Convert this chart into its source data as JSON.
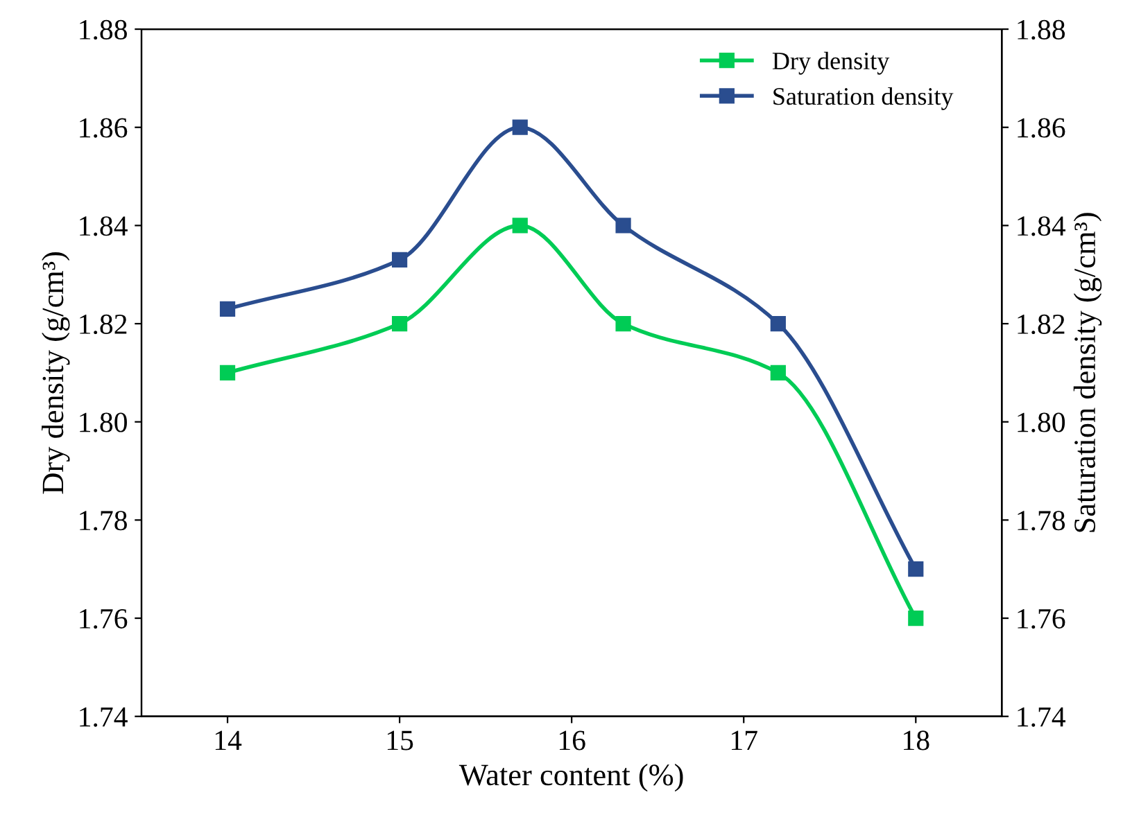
{
  "chart_data": {
    "type": "line",
    "xlabel": "Water content (%)",
    "ylabel": "Dry density (g/cm³)",
    "y2label": "Saturation density (g/cm³)",
    "x": [
      14,
      15,
      15.7,
      16.3,
      17.2,
      18
    ],
    "series": [
      {
        "name": "Dry density",
        "color": "#00cc55",
        "values": [
          1.81,
          1.82,
          1.84,
          1.82,
          1.81,
          1.76
        ]
      },
      {
        "name": "Saturation density",
        "color": "#2a4d8f",
        "values": [
          1.823,
          1.833,
          1.86,
          1.84,
          1.82,
          1.77
        ]
      }
    ],
    "xlim": [
      13.5,
      18.5
    ],
    "xticks": [
      14,
      15,
      16,
      17,
      18
    ],
    "ylim": [
      1.74,
      1.88
    ],
    "yticks": [
      1.74,
      1.76,
      1.78,
      {
        "value": 1.8,
        "label": "1.80"
      },
      1.82,
      1.84,
      1.86,
      1.88
    ],
    "y2lim": [
      1.74,
      1.88
    ],
    "y2ticks": [
      1.74,
      1.76,
      1.78,
      {
        "value": 1.8,
        "label": "1.80"
      },
      1.82,
      1.84,
      1.86,
      1.88
    ],
    "marker": "square",
    "line_style": "solid",
    "grid": false,
    "legend": "top right"
  }
}
